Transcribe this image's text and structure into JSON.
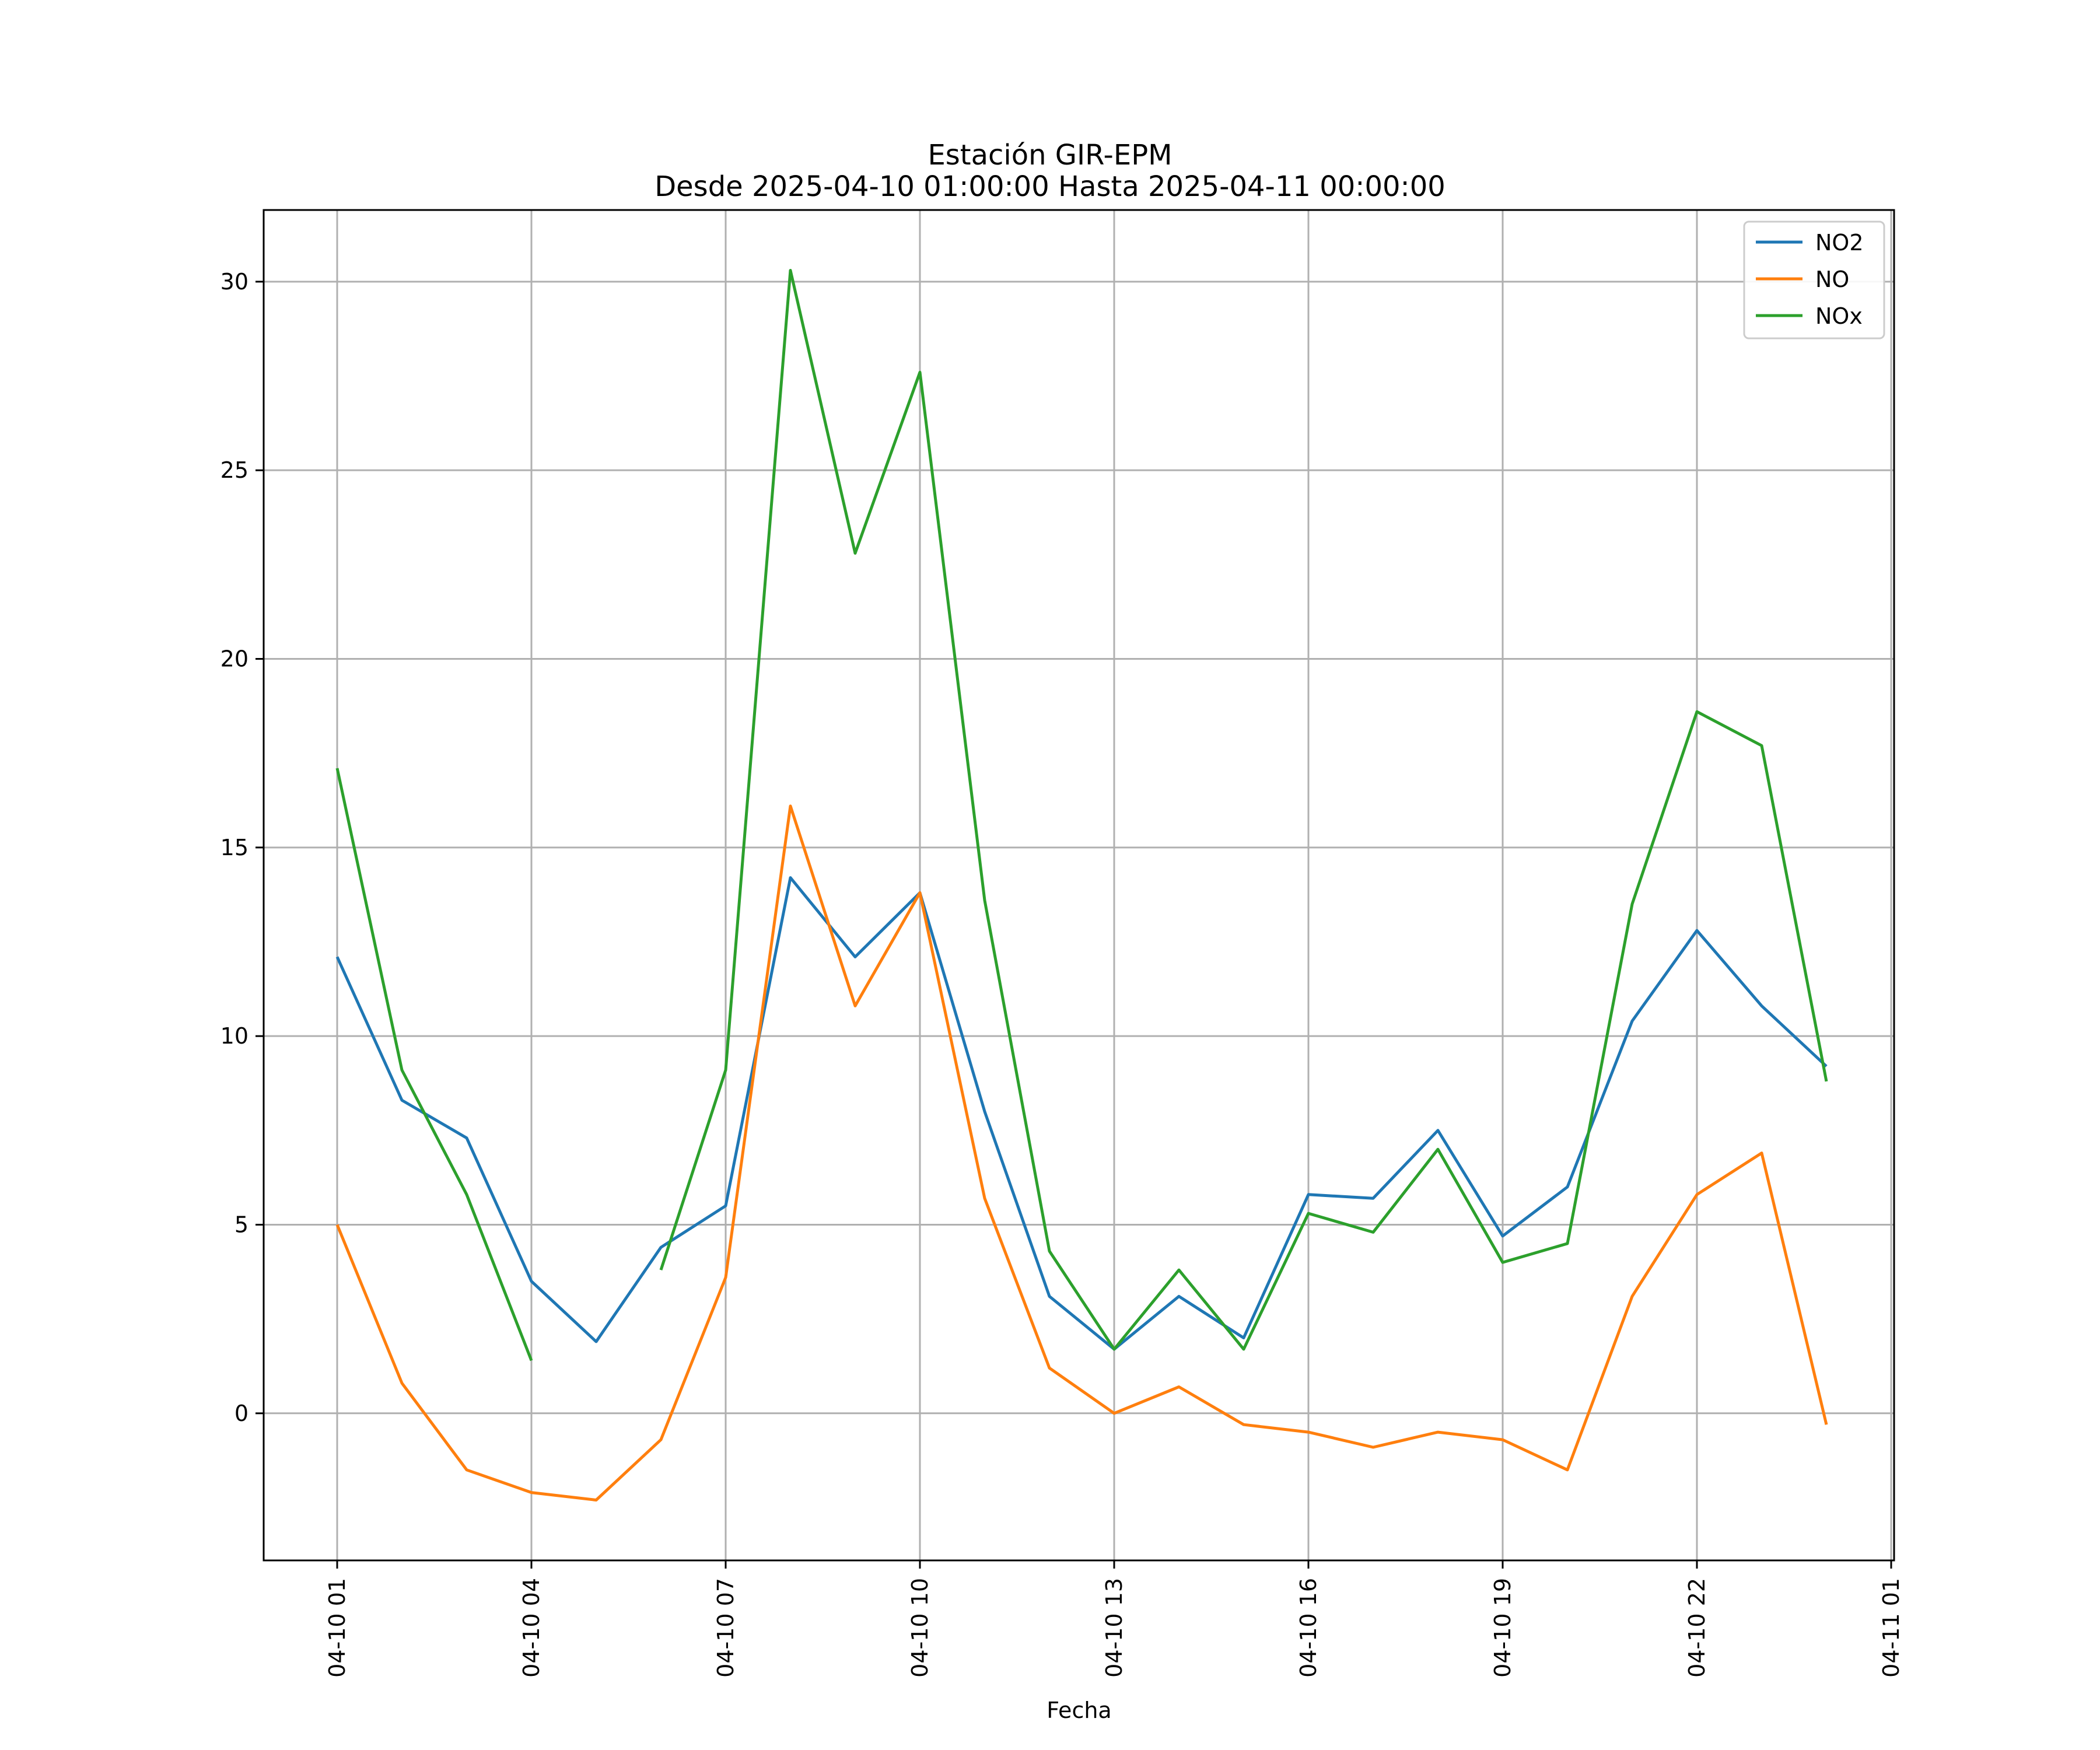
{
  "chart_data": {
    "type": "line",
    "title": "Estación GIR-EPM",
    "subtitle": "Desde 2025-04-10 01:00:00 Hasta 2025-04-11 00:00:00",
    "xlabel": "Fecha",
    "ylabel": "",
    "x": [
      "2025-04-10 01:00",
      "2025-04-10 02:00",
      "2025-04-10 03:00",
      "2025-04-10 04:00",
      "2025-04-10 05:00",
      "2025-04-10 06:00",
      "2025-04-10 07:00",
      "2025-04-10 08:00",
      "2025-04-10 09:00",
      "2025-04-10 10:00",
      "2025-04-10 11:00",
      "2025-04-10 12:00",
      "2025-04-10 13:00",
      "2025-04-10 14:00",
      "2025-04-10 15:00",
      "2025-04-10 16:00",
      "2025-04-10 17:00",
      "2025-04-10 18:00",
      "2025-04-10 19:00",
      "2025-04-10 20:00",
      "2025-04-10 21:00",
      "2025-04-10 22:00",
      "2025-04-10 23:00",
      "2025-04-11 00:00"
    ],
    "x_ticks": [
      "04-10 01",
      "04-10 04",
      "04-10 07",
      "04-10 10",
      "04-10 13",
      "04-10 16",
      "04-10 19",
      "04-10 22",
      "04-11 01"
    ],
    "x_tick_hours": [
      0,
      3,
      6,
      9,
      12,
      15,
      18,
      21,
      24
    ],
    "ylim": [
      -3.9,
      31.9
    ],
    "y_ticks": [
      0,
      5,
      10,
      15,
      20,
      25,
      30
    ],
    "grid": true,
    "legend_position": "top-right",
    "series": [
      {
        "name": "NO2",
        "color": "#1f77b4",
        "values": [
          12.1,
          8.3,
          7.3,
          3.5,
          1.9,
          4.4,
          5.5,
          14.2,
          12.1,
          13.8,
          8.0,
          3.1,
          1.7,
          3.1,
          2.0,
          5.8,
          5.7,
          7.5,
          4.7,
          6.0,
          10.4,
          12.8,
          10.8,
          9.2
        ]
      },
      {
        "name": "NO",
        "color": "#ff7f0e",
        "values": [
          5.0,
          0.8,
          -1.5,
          -2.1,
          -2.3,
          -0.7,
          3.6,
          16.1,
          10.8,
          13.8,
          5.7,
          1.2,
          0.0,
          0.7,
          -0.3,
          -0.5,
          -0.9,
          -0.5,
          -0.7,
          -1.5,
          3.1,
          5.8,
          6.9,
          -0.3
        ]
      },
      {
        "name": "NOx",
        "color": "#2ca02c",
        "values": [
          17.1,
          9.1,
          5.8,
          1.4,
          null,
          3.8,
          9.1,
          30.3,
          22.8,
          27.6,
          13.6,
          4.3,
          1.7,
          3.8,
          1.7,
          5.3,
          4.8,
          7.0,
          4.0,
          4.5,
          13.5,
          18.6,
          17.7,
          8.8
        ]
      }
    ]
  }
}
